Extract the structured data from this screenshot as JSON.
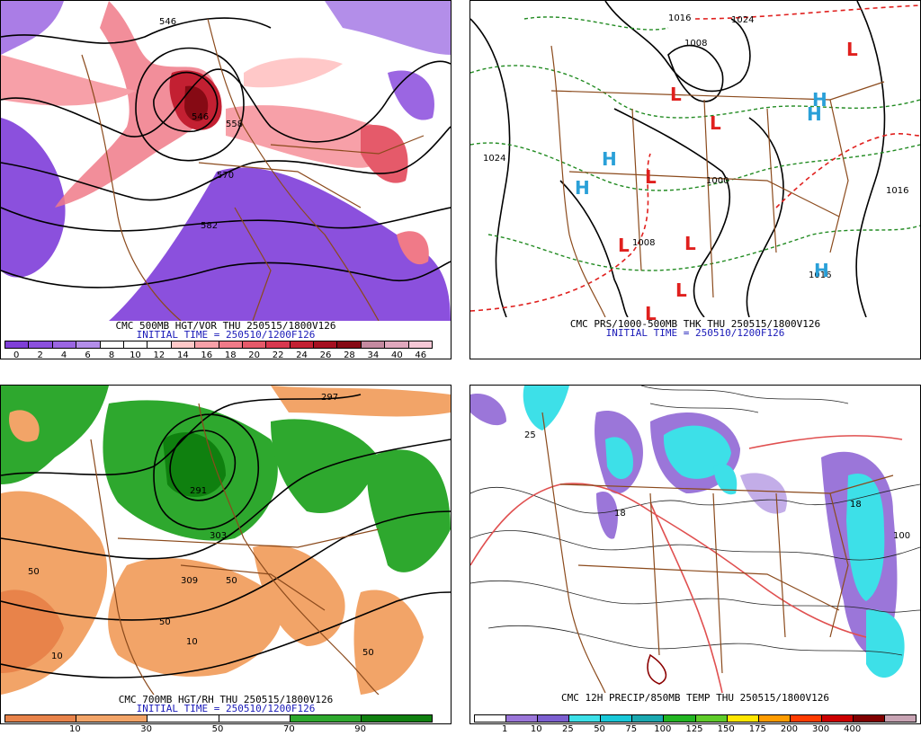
{
  "panels": {
    "vorticity": {
      "title": "CMC 500MB HGT/VOR THU 250515/1800V126",
      "subtitle": "INITIAL TIME = 250510/1200F126",
      "scale_labels": [
        "0",
        "2",
        "4",
        "6",
        "8",
        "10",
        "12",
        "14",
        "16",
        "18",
        "20",
        "22",
        "24",
        "26",
        "28",
        "34",
        "40",
        "46"
      ],
      "contour_labels": [
        "546",
        "546",
        "558",
        "570",
        "582"
      ]
    },
    "pressure": {
      "title": "CMC PRS/1000-500MB THK THU 250515/1800V126",
      "subtitle": "INITIAL TIME = 250510/1200F126",
      "isobar_labels": [
        "1024",
        "1016",
        "1008",
        "1000",
        "1008",
        "1016",
        "1024",
        "1016"
      ],
      "highs": [
        "H",
        "H",
        "H",
        "H",
        "H"
      ],
      "lows": [
        "L",
        "L",
        "L",
        "L",
        "L",
        "L",
        "L",
        "L"
      ]
    },
    "humidity": {
      "title": "CMC 700MB HGT/RH THU 250515/1800V126",
      "subtitle": "INITIAL TIME = 250510/1200F126",
      "scale_labels": [
        "10",
        "30",
        "50",
        "70",
        "90"
      ],
      "contour_labels": [
        "297",
        "291",
        "303",
        "309",
        "50",
        "50",
        "10",
        "10",
        "50",
        "50"
      ]
    },
    "precip": {
      "title": "CMC 12H PRECIP/850MB TEMP THU 250515/1800V126",
      "scale_labels": [
        "1",
        "10",
        "25",
        "50",
        "75",
        "100",
        "125",
        "150",
        "175",
        "200",
        "300",
        "400"
      ],
      "contour_labels": [
        "18",
        "100",
        "25",
        "18"
      ]
    }
  },
  "colors": {
    "vor_scale": [
      "#7f3fd7",
      "#8b50dd",
      "#9b66e2",
      "#b38ee9",
      "#ffffff",
      "#ffffff",
      "#ffffff",
      "#ffc8c8",
      "#f7a0a8",
      "#f07a88",
      "#e55a6a",
      "#d8384f",
      "#c32032",
      "#a51020",
      "#860a14",
      "#c48aa0",
      "#e0a8bd",
      "#f6c8d6"
    ],
    "rh_scale": [
      "#e8834a",
      "#f2a468",
      "#ffffff",
      "#ffffff",
      "#2ea82e",
      "#0f800f"
    ],
    "precip_scale": [
      "#ffffff",
      "#9b76d9",
      "#7c5fd0",
      "#3de0e8",
      "#19c8d8",
      "#1aa8b0",
      "#22b522",
      "#5fcc2a",
      "#ffe600",
      "#ff9c00",
      "#ff3c00",
      "#cc0000",
      "#800000",
      "#c8a4b4"
    ],
    "coast": "#8b4a1c"
  }
}
